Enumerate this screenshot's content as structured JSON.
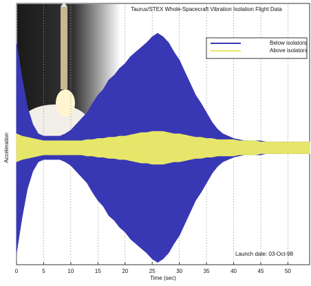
{
  "chart_data": {
    "type": "envelope",
    "title": "Taurus/STEX Whole-Spacecraft Vibration Isolation Flight Data",
    "annotation": "Launch date: 03-Oct-98",
    "x_label": "Time (sec)",
    "y_label": "Acceleration",
    "x": [
      0,
      1,
      2,
      3,
      4,
      5,
      6,
      7,
      8,
      9,
      10,
      11,
      12,
      13,
      14,
      15,
      16,
      17,
      18,
      19,
      20,
      21,
      22,
      23,
      24,
      25,
      26,
      27,
      28,
      29,
      30,
      31,
      32,
      33,
      34,
      35,
      36,
      37,
      38,
      39,
      40,
      41,
      42,
      43,
      44,
      45,
      46,
      47,
      48,
      49,
      50,
      51,
      52,
      53,
      54
    ],
    "series": [
      {
        "name": "Below isolators",
        "color": "#3838b4",
        "values": [
          0.9,
          0.6,
          0.35,
          0.2,
          0.12,
          0.1,
          0.1,
          0.1,
          0.1,
          0.12,
          0.15,
          0.2,
          0.25,
          0.3,
          0.38,
          0.45,
          0.5,
          0.58,
          0.62,
          0.68,
          0.72,
          0.78,
          0.82,
          0.86,
          0.9,
          0.95,
          0.98,
          0.95,
          0.9,
          0.82,
          0.75,
          0.65,
          0.55,
          0.45,
          0.38,
          0.3,
          0.22,
          0.16,
          0.12,
          0.1,
          0.08,
          0.07,
          0.06,
          0.06,
          0.06,
          0.06,
          0.05,
          0.05,
          0.05,
          0.05,
          0.05,
          0.05,
          0.05,
          0.05,
          0.05
        ]
      },
      {
        "name": "Above isolators",
        "color": "#e6e66a",
        "values": [
          0.12,
          0.1,
          0.09,
          0.08,
          0.07,
          0.06,
          0.06,
          0.06,
          0.06,
          0.06,
          0.06,
          0.06,
          0.06,
          0.07,
          0.07,
          0.08,
          0.08,
          0.09,
          0.09,
          0.1,
          0.1,
          0.11,
          0.12,
          0.13,
          0.13,
          0.14,
          0.14,
          0.14,
          0.13,
          0.12,
          0.12,
          0.11,
          0.1,
          0.09,
          0.09,
          0.08,
          0.08,
          0.07,
          0.07,
          0.07,
          0.07,
          0.06,
          0.06,
          0.06,
          0.06,
          0.05,
          0.05,
          0.05,
          0.05,
          0.05,
          0.05,
          0.05,
          0.05,
          0.05,
          0.05
        ]
      }
    ],
    "xlim": [
      0,
      54
    ],
    "xticks": [
      0,
      5,
      10,
      15,
      20,
      25,
      30,
      35,
      40,
      45,
      50
    ],
    "ylim": [
      -1,
      1
    ],
    "grid": true,
    "legend": "upper right"
  }
}
